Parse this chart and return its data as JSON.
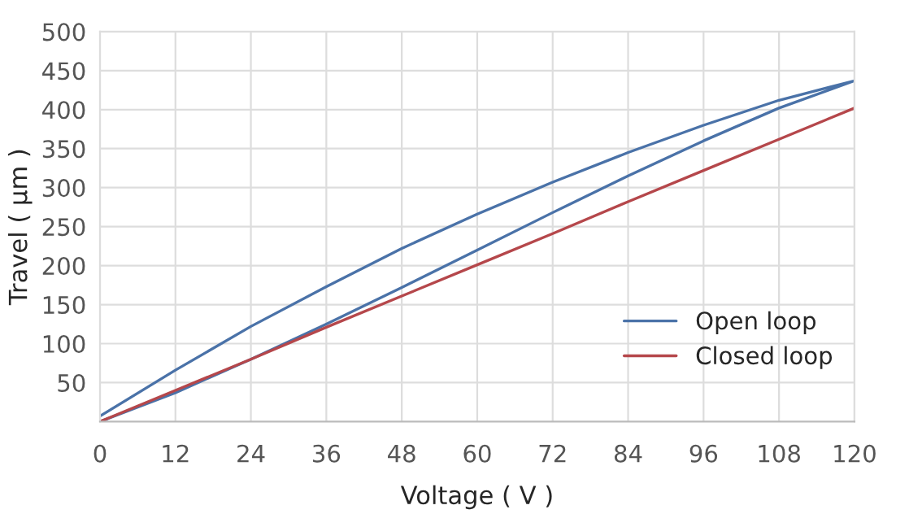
{
  "chart_data": {
    "type": "line",
    "xlabel": "Voltage ( V )",
    "ylabel": "Travel ( μm )",
    "xlim": [
      0,
      120
    ],
    "xticks": [
      0,
      12,
      24,
      36,
      48,
      60,
      72,
      84,
      96,
      108,
      120
    ],
    "ylim": [
      0,
      500
    ],
    "yticks": [
      50,
      100,
      150,
      200,
      250,
      300,
      350,
      400,
      450,
      500
    ],
    "grid": true,
    "legend": "bottom right",
    "line_style": "solid",
    "marker": "none",
    "series": [
      {
        "name": "Open loop",
        "color": "#4a72a8",
        "x": [
          0,
          12,
          24,
          36,
          48,
          60,
          72,
          84,
          96,
          108,
          120,
          108,
          96,
          84,
          72,
          60,
          48,
          36,
          24,
          12,
          0
        ],
        "values": [
          0,
          37,
          80,
          125,
          172,
          220,
          268,
          315,
          360,
          402,
          437,
          412,
          380,
          345,
          307,
          266,
          222,
          173,
          122,
          66,
          7
        ]
      },
      {
        "name": "Closed loop",
        "color": "#b5474b",
        "x": [
          0,
          12,
          24,
          36,
          48,
          60,
          72,
          84,
          96,
          108,
          120
        ],
        "values": [
          0,
          40,
          80,
          121,
          161,
          201,
          241,
          282,
          322,
          362,
          402
        ]
      }
    ]
  }
}
